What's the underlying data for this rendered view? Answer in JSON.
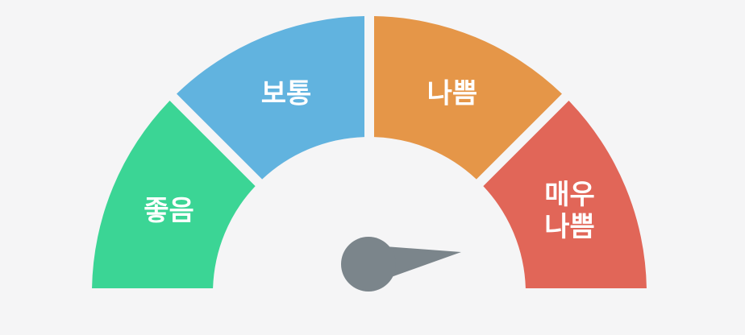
{
  "gauge": {
    "segments": [
      {
        "lines": [
          "좋음"
        ],
        "color": "#3bd595"
      },
      {
        "lines": [
          "보통"
        ],
        "color": "#61b3df"
      },
      {
        "lines": [
          "나쁨"
        ],
        "color": "#e59648"
      },
      {
        "lines": [
          "매우",
          "나쁨"
        ],
        "color": "#e16658"
      }
    ],
    "needle_color": "#7b858b",
    "background_color": "#f5f5f6"
  }
}
